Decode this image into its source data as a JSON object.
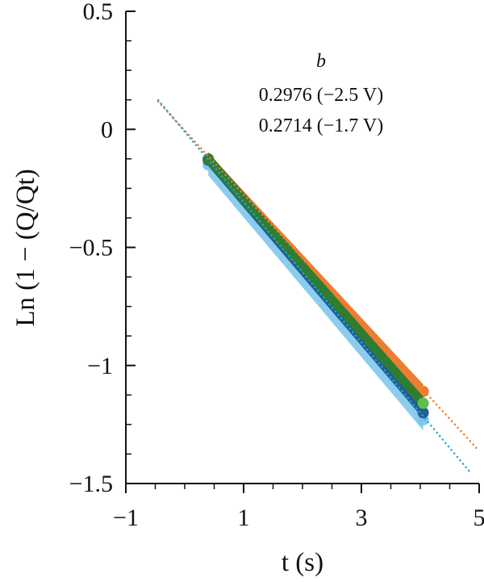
{
  "chart_data": {
    "type": "scatter",
    "xlabel": "t (s)",
    "ylabel": "Ln (1 − (Q/Qt)",
    "xlim": [
      -1,
      5
    ],
    "ylim": [
      -1.5,
      0.5
    ],
    "xticks": [
      -1,
      1,
      3,
      5
    ],
    "xtick_labels": [
      "−1",
      "1",
      "3",
      "5"
    ],
    "yticks": [
      0.5,
      0,
      -0.5,
      -1,
      -1.5
    ],
    "ytick_labels": [
      "0.5",
      "0",
      "−0.5",
      "−1",
      "−1.5"
    ],
    "grid": false,
    "annotation": {
      "header": "b",
      "lines": [
        "0.2976 (−2.5 V)",
        "0.2714 (−1.7 V)"
      ]
    },
    "series": [
      {
        "color": "#ED7D31",
        "x_range": [
          0.4,
          4.05
        ],
        "values": [
          [
            0.4,
            -0.13
          ],
          [
            4.05,
            -1.11
          ]
        ],
        "band": 0.03
      },
      {
        "color": "#7FC6EC",
        "x_range": [
          0.4,
          4.05
        ],
        "values": [
          [
            0.4,
            -0.15
          ],
          [
            4.05,
            -1.23
          ]
        ],
        "band": 0.045
      },
      {
        "color": "#1F5F94",
        "x_range": [
          0.4,
          4.05
        ],
        "values": [
          [
            0.4,
            -0.13
          ],
          [
            4.05,
            -1.2
          ]
        ],
        "band": 0.025
      },
      {
        "color": "#2F7D32",
        "x_range": [
          0.4,
          4.05
        ],
        "values": [
          [
            0.4,
            -0.125
          ],
          [
            4.05,
            -1.16
          ]
        ],
        "band": 0.028,
        "highlight_color": "#5FBF4F"
      }
    ],
    "fits": [
      {
        "color": "#ED7D31",
        "slope": -0.2714,
        "intercept": -0.005,
        "x_range": [
          -0.45,
          5.0
        ]
      },
      {
        "color": "#29A3D6",
        "slope": -0.2976,
        "intercept": -0.01,
        "x_range": [
          -0.45,
          4.85
        ]
      }
    ]
  }
}
